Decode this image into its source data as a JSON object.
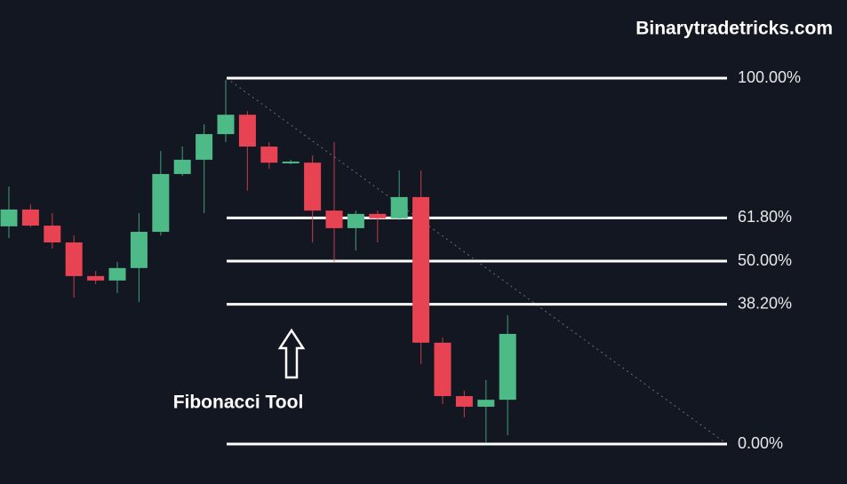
{
  "chart_data": {
    "type": "candlestick",
    "watermark": "Binarytradetricks.com",
    "annotation": "Fibonacci Tool",
    "up_color": "#4dba87",
    "down_color": "#e84352",
    "level_color": "#ffffff",
    "ylim": [
      0,
      100
    ],
    "fib_levels": [
      {
        "value": 100,
        "label": "100.00%"
      },
      {
        "value": 61.8,
        "label": "61.80%"
      },
      {
        "value": 50,
        "label": "50.00%"
      },
      {
        "value": 38.2,
        "label": "38.20%"
      },
      {
        "value": 0,
        "label": "0.00%"
      }
    ],
    "open": [
      59.5,
      64.1,
      59.7,
      55.1,
      45.9,
      44.7,
      48.1,
      58.0,
      73.8,
      77.7,
      84.7,
      90.0,
      81.3,
      76.9,
      76.9,
      63.8,
      59.0,
      62.9,
      61.7,
      67.5,
      27.7,
      13.1,
      10.2,
      12.1
    ],
    "high": [
      70.4,
      65.5,
      63.1,
      57.0,
      47.3,
      49.8,
      63.1,
      80.1,
      81.3,
      87.4,
      99.5,
      91.0,
      82.5,
      77.7,
      78.9,
      82.5,
      63.8,
      63.8,
      74.8,
      74.8,
      29.1,
      14.6,
      17.5,
      35.2
    ],
    "low": [
      56.3,
      59.2,
      53.4,
      40.0,
      43.7,
      41.3,
      38.8,
      57.0,
      73.3,
      63.1,
      82.5,
      69.2,
      75.2,
      76.5,
      55.1,
      49.8,
      52.9,
      55.1,
      61.2,
      21.8,
      10.9,
      7.3,
      0.5,
      2.4
    ],
    "close": [
      64.1,
      59.7,
      55.1,
      45.9,
      44.7,
      48.1,
      58.0,
      73.8,
      77.7,
      84.7,
      90.0,
      81.3,
      76.9,
      77.2,
      63.8,
      59.0,
      62.9,
      61.7,
      67.5,
      27.7,
      13.1,
      10.2,
      12.1,
      30.1
    ]
  }
}
